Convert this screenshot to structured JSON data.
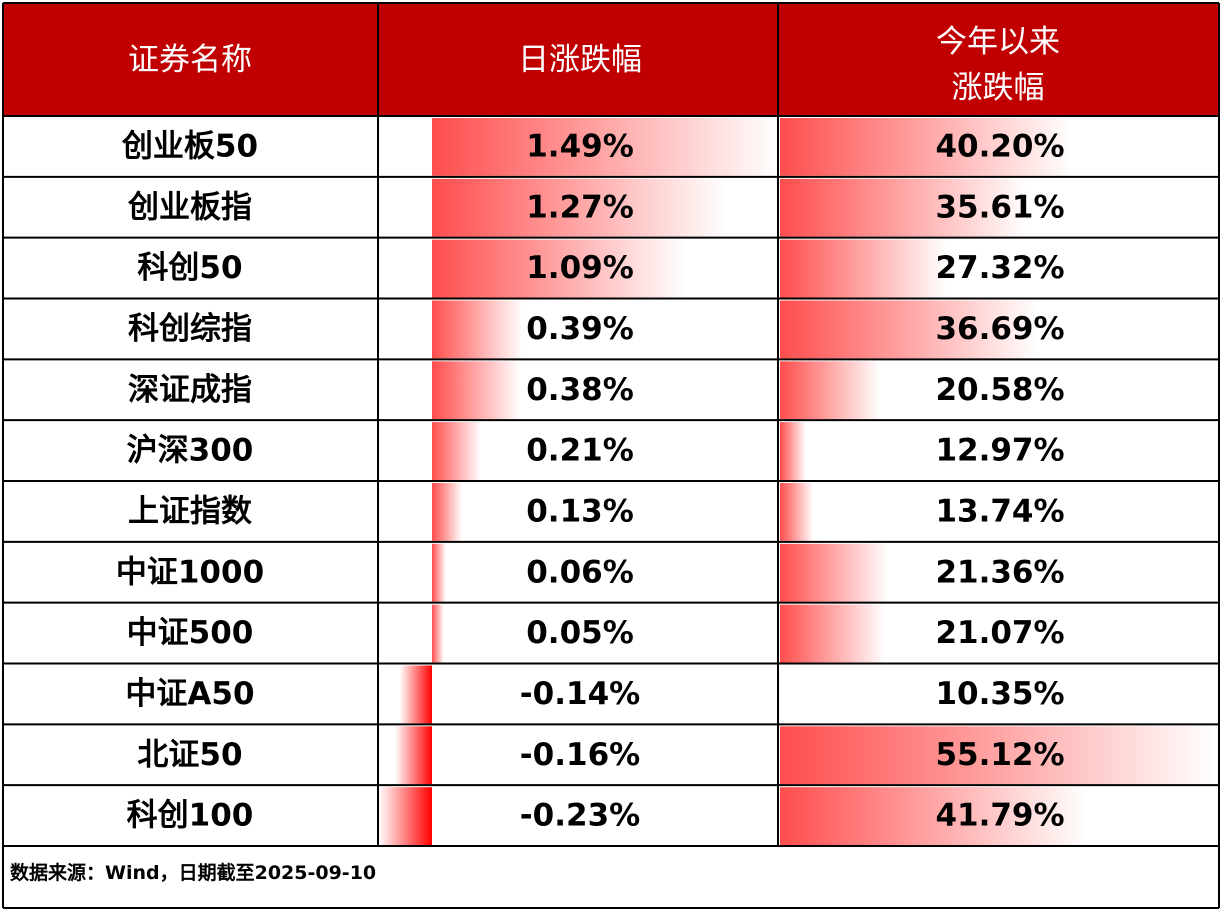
{
  "header": [
    "证券名称",
    "日涨跌幅",
    [
      "今年以来",
      "涨跌幅"
    ]
  ],
  "rows": [
    "创业板50",
    "创业板指",
    "科创50",
    "科创综指",
    "深证成指",
    "沪深300",
    "上证指数",
    "中证1000",
    "中证500",
    "中证A50",
    "北证50",
    "科创100"
  ],
  "daily": {
    "values": [
      1.49,
      1.27,
      1.09,
      0.39,
      0.38,
      0.21,
      0.13,
      0.06,
      0.05,
      -0.14,
      -0.16,
      -0.23
    ],
    "value_labels": [
      "1.49%",
      "1.27%",
      "1.09%",
      "0.39%",
      "0.38%",
      "0.21%",
      "0.13%",
      "0.06%",
      "0.05%",
      "-0.14%",
      "-0.16%",
      "-0.23%"
    ]
  },
  "ytd": {
    "values": [
      40.2,
      35.61,
      27.32,
      36.69,
      20.58,
      12.97,
      13.74,
      21.36,
      21.07,
      10.35,
      55.12,
      41.79
    ],
    "value_labels": [
      "40.20%",
      "35.61%",
      "27.32%",
      "36.69%",
      "20.58%",
      "12.97%",
      "13.74%",
      "21.36%",
      "21.07%",
      "10.35%",
      "55.12%",
      "41.79%"
    ]
  },
  "source": "数据来源：Wind，日期截至2025-09-10"
}
